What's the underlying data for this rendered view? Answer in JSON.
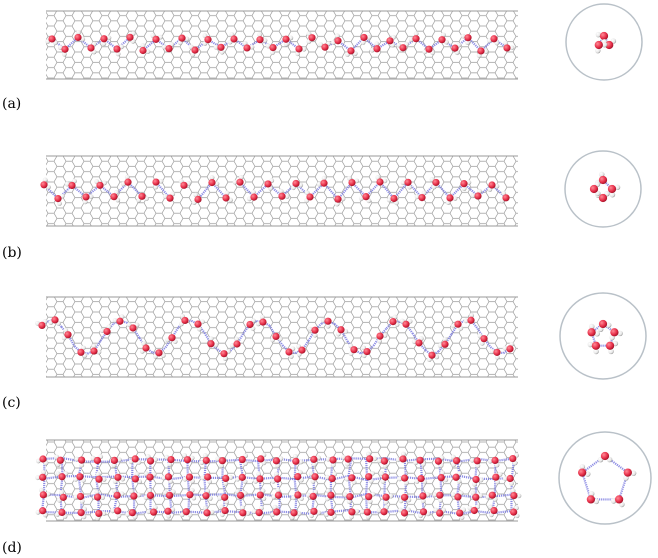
{
  "panels": [
    {
      "id": "a",
      "label": "(a)"
    },
    {
      "id": "b",
      "label": "(b)"
    },
    {
      "id": "c",
      "label": "(c)"
    },
    {
      "id": "d",
      "label": "(d)"
    }
  ],
  "colors": {
    "tube_lattice": "#9a9a9a",
    "oxygen": "#e8304a",
    "hydrogen": "#f2f2f2",
    "hydrogen_shade": "#9b9b9b",
    "hbond": "#7a7ae0",
    "ring": "#b9c1c8"
  }
}
